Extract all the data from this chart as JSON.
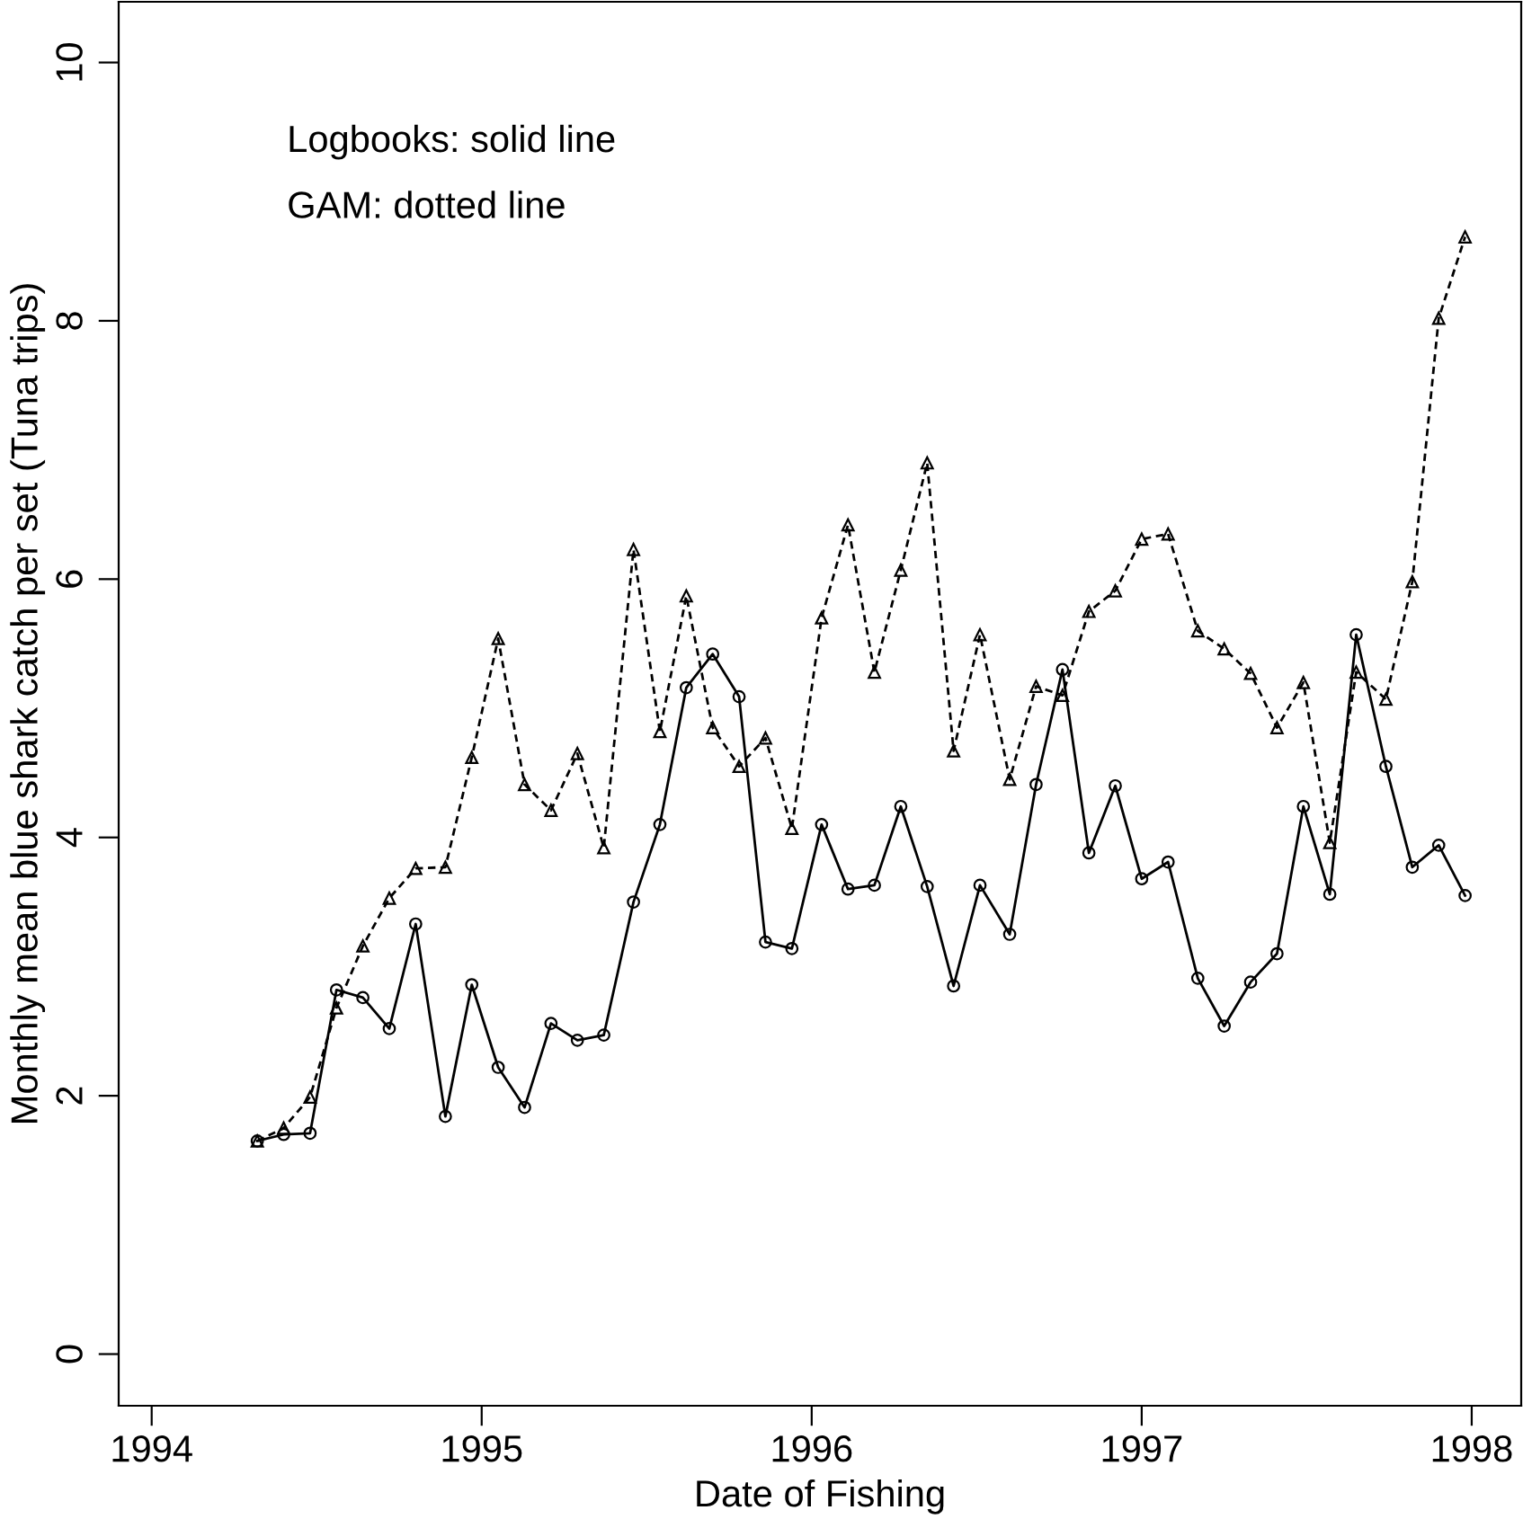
{
  "chart_data": {
    "type": "line",
    "xlabel": "Date of Fishing",
    "ylabel": "Monthly mean blue shark catch per set (Tuna trips)",
    "annotations": [
      "Logbooks: solid line",
      "GAM: dotted line"
    ],
    "x": [
      1994.32,
      1994.4,
      1994.48,
      1994.56,
      1994.64,
      1994.72,
      1994.8,
      1994.89,
      1994.97,
      1995.05,
      1995.13,
      1995.21,
      1995.29,
      1995.37,
      1995.46,
      1995.54,
      1995.62,
      1995.7,
      1995.78,
      1995.86,
      1995.94,
      1996.03,
      1996.11,
      1996.19,
      1996.27,
      1996.35,
      1996.43,
      1996.51,
      1996.6,
      1996.68,
      1996.76,
      1996.84,
      1996.92,
      1997.0,
      1997.08,
      1997.17,
      1997.25,
      1997.33,
      1997.41,
      1997.49,
      1997.57,
      1997.65,
      1997.74,
      1997.82,
      1997.9,
      1997.98
    ],
    "series": [
      {
        "color": "#000000",
        "line_style": "solid",
        "marker": "circle",
        "values": [
          1.65,
          1.7,
          1.71,
          2.82,
          2.76,
          2.52,
          3.33,
          1.84,
          2.86,
          2.22,
          1.91,
          2.56,
          2.43,
          2.47,
          3.5,
          4.1,
          5.16,
          5.42,
          5.09,
          3.19,
          3.14,
          4.1,
          3.6,
          3.63,
          4.24,
          3.62,
          2.85,
          3.63,
          3.25,
          4.41,
          5.3,
          3.88,
          4.4,
          3.68,
          3.81,
          2.91,
          2.54,
          2.88,
          3.1,
          4.24,
          3.56,
          5.57,
          4.55,
          3.77,
          3.94,
          3.55
        ]
      },
      {
        "color": "#000000",
        "line_style": "dashed",
        "marker": "triangle",
        "values": [
          1.65,
          1.75,
          1.99,
          2.68,
          3.16,
          3.53,
          3.76,
          3.77,
          4.62,
          5.54,
          4.41,
          4.21,
          4.65,
          3.92,
          6.23,
          4.82,
          5.87,
          4.85,
          4.55,
          4.77,
          4.07,
          5.7,
          6.42,
          5.28,
          6.07,
          6.9,
          4.67,
          5.57,
          4.45,
          5.17,
          5.1,
          5.75,
          5.91,
          6.31,
          6.35,
          5.6,
          5.46,
          5.27,
          4.85,
          5.2,
          3.96,
          5.28,
          5.07,
          5.98,
          8.02,
          8.65
        ]
      }
    ],
    "xlim": [
      1993.9,
      1998.15
    ],
    "ylim": [
      -0.4,
      10.47
    ],
    "xticks": [
      1994,
      1995,
      1996,
      1997,
      1998
    ],
    "yticks": [
      0,
      2,
      4,
      6,
      8,
      10
    ],
    "grid": false,
    "legend": false
  }
}
